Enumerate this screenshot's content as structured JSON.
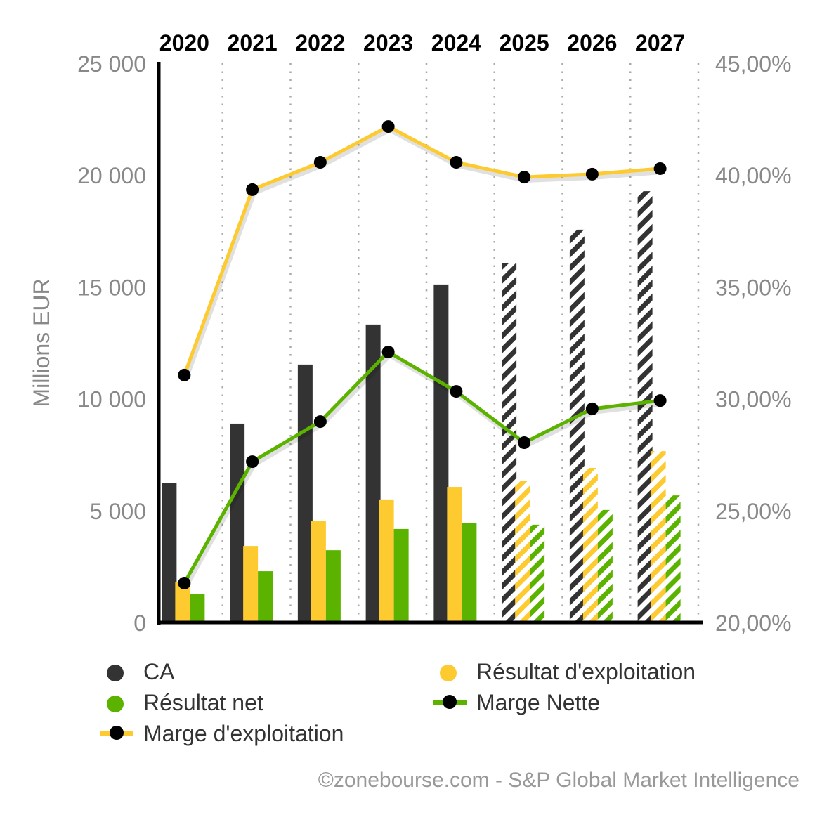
{
  "chart_data": {
    "type": "bar",
    "categories": [
      "2020",
      "2021",
      "2022",
      "2023",
      "2024",
      "2025",
      "2026",
      "2027"
    ],
    "estimated_from": "2025",
    "ylabel": "Millions EUR",
    "ylim": [
      0,
      25000
    ],
    "yticks": [
      "0",
      "5 000",
      "10 000",
      "15 000",
      "20 000",
      "25 000"
    ],
    "y2lim": [
      20,
      45
    ],
    "y2ticks": [
      "20,00%",
      "25,00%",
      "30,00%",
      "35,00%",
      "40,00%",
      "45,00%"
    ],
    "series": [
      {
        "name": "CA",
        "kind": "bar",
        "color": "#333333",
        "values": [
          6250,
          8890,
          11530,
          13320,
          15110,
          16050,
          17560,
          19280
        ]
      },
      {
        "name": "Résultat d'exploitation",
        "kind": "bar",
        "color": "#fdca30",
        "values": [
          1820,
          3420,
          4550,
          5500,
          6060,
          6340,
          6910,
          7660
        ]
      },
      {
        "name": "Résultat net",
        "kind": "bar",
        "color": "#5bb300",
        "values": [
          1256,
          2290,
          3230,
          4180,
          4460,
          4370,
          5030,
          5680
        ]
      },
      {
        "name": "Marge d'exploitation",
        "kind": "line",
        "axis": "right",
        "color": "#fdca30",
        "values": [
          31.06,
          39.35,
          40.57,
          42.17,
          40.57,
          39.91,
          40.04,
          40.29
        ]
      },
      {
        "name": "Marge Nette",
        "kind": "line",
        "axis": "right",
        "color": "#5bb300",
        "values": [
          21.76,
          27.19,
          28.98,
          32.09,
          30.33,
          28.04,
          29.55,
          29.92
        ]
      }
    ],
    "grid": "vertical-dotted",
    "legend_placement": "bottom"
  },
  "legend": {
    "ca": "CA",
    "op": "Résultat d'exploitation",
    "net": "Résultat net",
    "mn": "Marge Nette",
    "me": "Marge d'exploitation"
  },
  "credit": "©zonebourse.com - S&P Global Market Intelligence"
}
